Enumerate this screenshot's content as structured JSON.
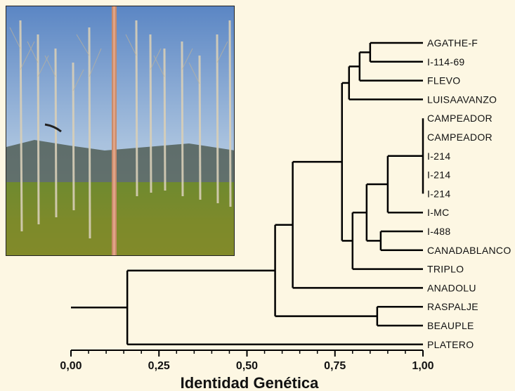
{
  "figure": {
    "photo_description_icon": "poplar-plantation-photo"
  },
  "chart_data": {
    "type": "dendrogram",
    "xlabel": "Identidad Genética",
    "xlim": [
      0,
      1
    ],
    "ticks": [
      "0,00",
      "0,25",
      "0,50",
      "0,75",
      "1,00"
    ],
    "leaves": [
      "AGATHE-F",
      "I-114-69",
      "FLEVO",
      "LUISAAVANZO",
      "CAMPEADOR",
      "CAMPEADOR",
      "I-214",
      "I-214",
      "I-214",
      "I-MC",
      "I-488",
      "CANADABLANCO",
      "TRIPLO",
      "ANADOLU",
      "RASPALJE",
      "BEAUPLE",
      "PLATERO"
    ],
    "merges": [
      {
        "members": [
          "CAMPEADOR",
          "CAMPEADOR",
          "I-214",
          "I-214",
          "I-214"
        ],
        "identity": 1.0
      },
      {
        "members": [
          "AGATHE-F",
          "I-114-69"
        ],
        "identity": 0.85
      },
      {
        "members": [
          "AGATHE-F",
          "I-114-69",
          "FLEVO"
        ],
        "identity": 0.82
      },
      {
        "members": [
          "AGATHE-F",
          "I-114-69",
          "FLEVO",
          "LUISAAVANZO"
        ],
        "identity": 0.79
      },
      {
        "members": [
          "CAMPEADOR...I-214",
          "I-MC"
        ],
        "identity": 0.9
      },
      {
        "members": [
          "I-488",
          "CANADABLANCO"
        ],
        "identity": 0.88
      },
      {
        "members": [
          "CAMPEADOR...I-MC",
          "I-488",
          "CANADABLANCO"
        ],
        "identity": 0.84
      },
      {
        "members": [
          "CAMPEADOR...CANADABLANCO",
          "TRIPLO"
        ],
        "identity": 0.8
      },
      {
        "members": [
          "AGATHE-F...LUISAAVANZO",
          "CAMPEADOR...TRIPLO"
        ],
        "identity": 0.77
      },
      {
        "members": [
          "AGATHE-F...TRIPLO",
          "ANADOLU"
        ],
        "identity": 0.63
      },
      {
        "members": [
          "RASPALJE",
          "BEAUPLE"
        ],
        "identity": 0.87
      },
      {
        "members": [
          "AGATHE-F...ANADOLU",
          "RASPALJE",
          "BEAUPLE"
        ],
        "identity": 0.58
      },
      {
        "members": [
          "AGATHE-F...BEAUPLE",
          "PLATERO"
        ],
        "identity": 0.16
      }
    ]
  }
}
